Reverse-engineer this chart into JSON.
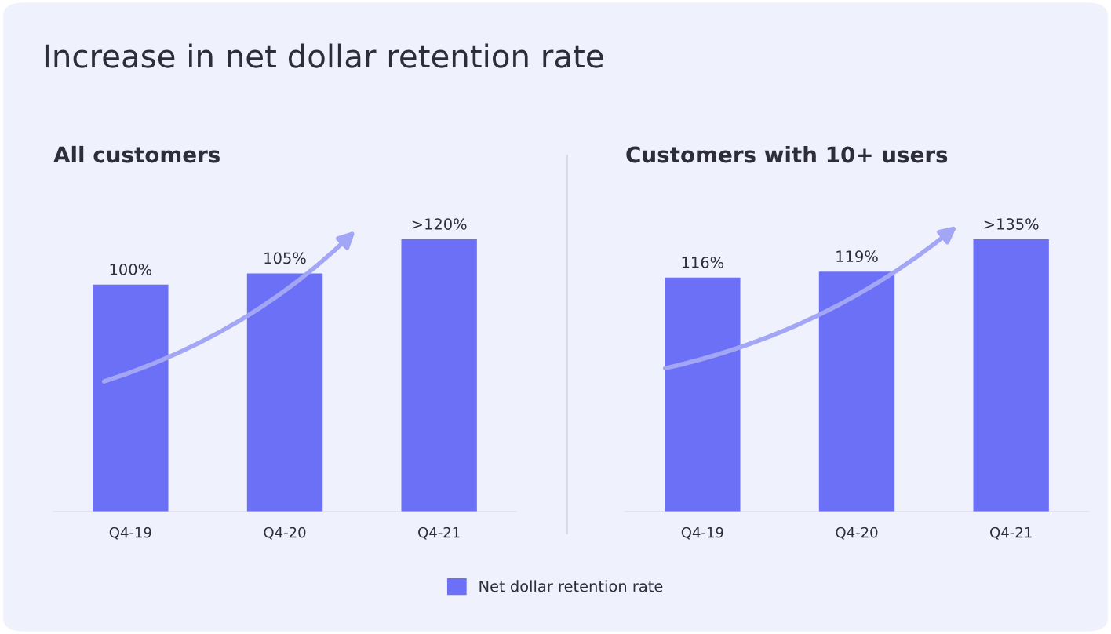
{
  "chart_data": [
    {
      "type": "bar",
      "title": "All customers",
      "annotations": [
        "Increase in net dollar retention rate"
      ],
      "categories": [
        "Q4-19",
        "Q4-20",
        "Q4-21"
      ],
      "tick_labels": "x",
      "grid": false,
      "legend": "bottom",
      "series": [
        {
          "name": "Net dollar retention rate",
          "color": "#6c70f6",
          "values": [
            100,
            105,
            120
          ],
          "value_labels": [
            "100%",
            "105%",
            ">120%"
          ]
        }
      ]
    },
    {
      "type": "bar",
      "title": "Customers with 10+ users",
      "categories": [
        "Q4-19",
        "Q4-20",
        "Q4-21"
      ],
      "tick_labels": "x",
      "grid": false,
      "legend": "bottom",
      "series": [
        {
          "name": "Net dollar retention rate",
          "color": "#6c70f6",
          "values": [
            116,
            119,
            135
          ],
          "value_labels": [
            "116%",
            "119%",
            ">135%"
          ]
        }
      ]
    }
  ]
}
